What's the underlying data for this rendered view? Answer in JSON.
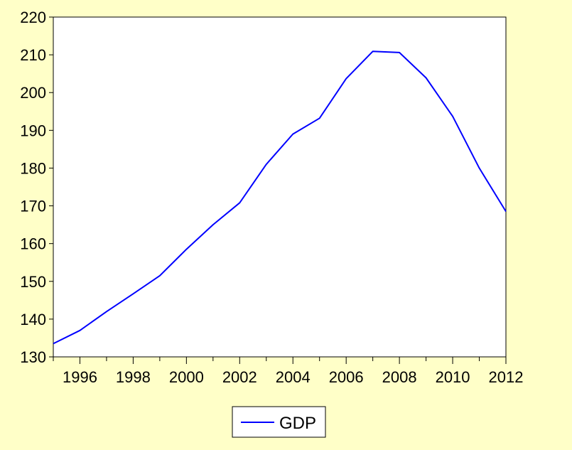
{
  "chart_data": {
    "type": "line",
    "title": "",
    "xlabel": "",
    "ylabel": "",
    "xlim": [
      1995,
      2012
    ],
    "ylim": [
      130,
      220
    ],
    "x_ticks": [
      1996,
      1998,
      2000,
      2002,
      2004,
      2006,
      2008,
      2010,
      2012
    ],
    "y_ticks": [
      130,
      140,
      150,
      160,
      170,
      180,
      190,
      200,
      210,
      220
    ],
    "grid": false,
    "legend_position": "bottom-center",
    "series": [
      {
        "name": "GDP",
        "color": "#0000ff",
        "x": [
          1995,
          1996,
          1997,
          1998,
          1999,
          2000,
          2001,
          2002,
          2003,
          2004,
          2005,
          2006,
          2007,
          2008,
          2009,
          2010,
          2011,
          2012
        ],
        "values": [
          133.5,
          137.0,
          142.0,
          146.7,
          151.5,
          158.5,
          165.0,
          170.8,
          181.0,
          189.0,
          193.2,
          203.7,
          210.9,
          210.6,
          203.9,
          193.7,
          180.0,
          168.5
        ]
      }
    ]
  },
  "colors": {
    "background": "#ffffc8",
    "plot_background": "#ffffff",
    "axis": "#000000"
  }
}
